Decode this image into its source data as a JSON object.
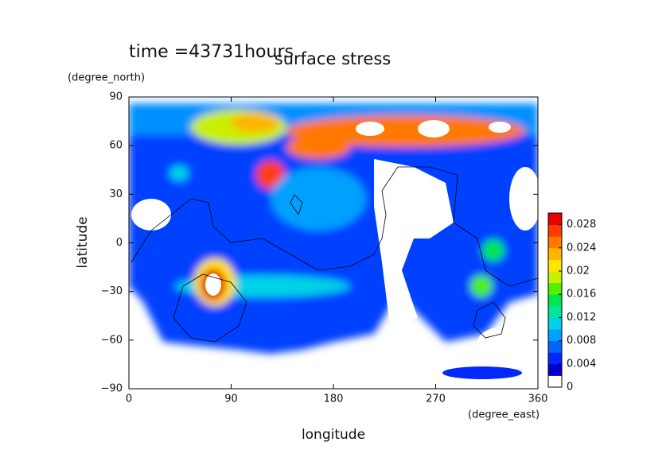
{
  "chart_data": {
    "type": "contour",
    "title": "surface stress",
    "subtitle": "time =43731hours",
    "x_label": "longitude",
    "y_label": "latitude",
    "x_unit": "(degree_east)",
    "y_unit": "(degree_north)",
    "xlim": [
      0,
      360
    ],
    "xticks": [
      0,
      90,
      180,
      270,
      360
    ],
    "ylim": [
      -90,
      90
    ],
    "yticks": [
      {
        "value": -90,
        "label": "−90"
      },
      {
        "value": -60,
        "label": "−60"
      },
      {
        "value": -30,
        "label": "−30"
      },
      0,
      30,
      60,
      90
    ],
    "colorbar_lim": [
      0,
      0.03
    ],
    "colorbar_ticks": [
      0,
      0.004,
      0.008,
      0.012,
      0.016,
      0.02,
      0.024,
      0.028
    ],
    "colormap": [
      "#ffffff",
      "#0000c8",
      "#0028ff",
      "#0064ff",
      "#00a0ff",
      "#00d2e6",
      "#00e6a0",
      "#00e650",
      "#50f000",
      "#c8f000",
      "#ffe600",
      "#ffb400",
      "#ff7800",
      "#ff3c00",
      "#e60000"
    ]
  }
}
